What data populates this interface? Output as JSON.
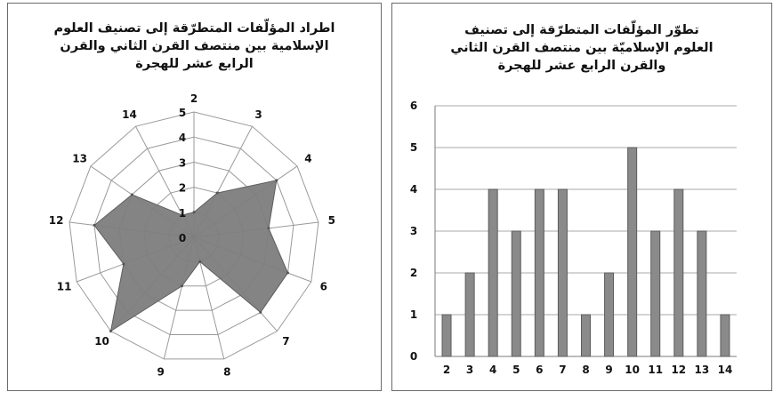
{
  "chart_data": [
    {
      "type": "radar",
      "title": "اطراد المؤلّفات المتطرّقة إلى تصنيف العلوم الإسلامية بين منتصف القرن الثاني والقرن الرابع عشر للهجرة",
      "categories": [
        "2",
        "3",
        "4",
        "5",
        "6",
        "7",
        "8",
        "9",
        "10",
        "11",
        "12",
        "13",
        "14"
      ],
      "values": [
        1,
        2,
        4,
        3,
        4,
        4,
        1,
        2,
        5,
        3,
        4,
        3,
        1
      ],
      "rlim": [
        0,
        5
      ],
      "r_ticks": [
        "0",
        "1",
        "2",
        "3",
        "4",
        "5"
      ],
      "fill_color": "#7d7d7d"
    },
    {
      "type": "bar",
      "title": "تطوّر المؤلّفات المتطرّقة إلى تصنيف العلوم الإسلاميّة بين منتصف القرن الثاني والقرن الرابع عشر للهجرة",
      "categories": [
        "2",
        "3",
        "4",
        "5",
        "6",
        "7",
        "8",
        "9",
        "10",
        "11",
        "12",
        "13",
        "14"
      ],
      "values": [
        1,
        2,
        4,
        3,
        4,
        4,
        1,
        2,
        5,
        3,
        4,
        3,
        1
      ],
      "ylim": [
        0,
        6
      ],
      "y_ticks": [
        "0",
        "1",
        "2",
        "3",
        "4",
        "5",
        "6"
      ],
      "grid": true,
      "bar_color": "#8a8a8a"
    }
  ]
}
